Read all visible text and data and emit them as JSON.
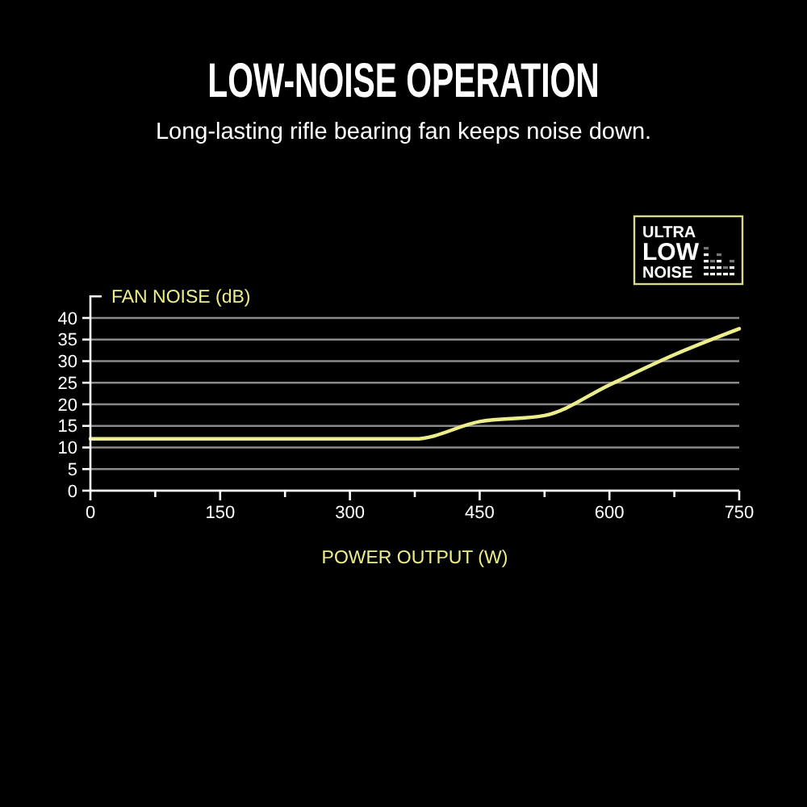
{
  "chart_data": {
    "type": "line",
    "title": "LOW-NOISE OPERATION",
    "subtitle": "Long-lasting rifle bearing fan keeps noise down.",
    "xlabel": "POWER OUTPUT (W)",
    "ylabel": "FAN NOISE (dB)",
    "annotations": [
      "ULTRA",
      "LOW",
      "NOISE"
    ],
    "x": [
      0,
      375,
      450,
      525,
      600,
      675,
      750
    ],
    "values": [
      12,
      12,
      16,
      17.4,
      24.5,
      31.5,
      37.5
    ],
    "color": "#eded8c",
    "xlim": [
      0,
      750
    ],
    "ylim": [
      0,
      45
    ],
    "xticks": [
      0,
      {
        "value": 75,
        "label": null
      },
      150,
      {
        "value": 225,
        "label": null
      },
      300,
      {
        "value": 375,
        "label": null
      },
      450,
      {
        "value": 525,
        "label": null
      },
      600,
      {
        "value": 675,
        "label": null
      },
      750
    ],
    "yticks": [
      0,
      5,
      10,
      15,
      20,
      25,
      30,
      35,
      40
    ],
    "grid": "y",
    "line_style": "solid"
  }
}
